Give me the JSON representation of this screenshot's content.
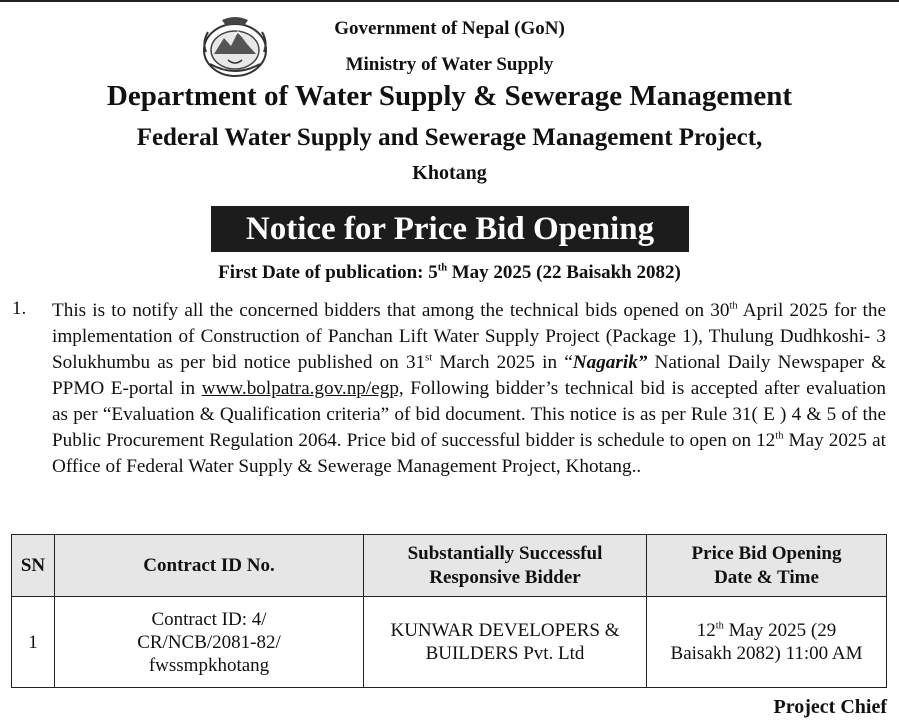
{
  "header": {
    "line1": "Government of Nepal (GoN)",
    "line2": "Ministry of Water Supply",
    "line3": "Department of Water Supply & Sewerage Management",
    "line4": "Federal Water Supply and Sewerage Management Project,",
    "line5": "Khotang",
    "emblem_icon": "nepal-emblem-icon"
  },
  "notice_title": "Notice for Price Bid Opening",
  "publication": {
    "prefix": "First Date of publication: 5",
    "sup": "th",
    "suffix": "  May 2025 (22 Baisakh 2082)"
  },
  "paragraph": {
    "number": "1.",
    "p1": "This is to notify all the concerned bidders that among the technical bids opened on 30",
    "s1": "th",
    "p2": "  April 2025 for the implementation of Construction of  Panchan Lift Water Supply Project (Package 1), Thulung Dudhkoshi- 3 Solukhumbu as  per bid notice published on 31",
    "s2": "st",
    "p3": " March 2025 in “",
    "newspaper": "Nagarik”",
    "p4": " National Daily Newspaper & PPMO E-portal in ",
    "link": "www.bolpatra.gov.np/egp,",
    "p5": " Following  bidder’s technical bid is accepted after evaluation as per “Evaluation & Qualification criteria” of bid document. This notice is as per Rule 31( E ) 4 & 5  of the Public Procurement Regulation 2064. Price bid of successful bidder is  schedule to open on  12",
    "s3": "th",
    "p6": "  May 2025 at Office of Federal Water Supply & Sewerage Management Project, Khotang.."
  },
  "table": {
    "headers": {
      "sn": "SN",
      "contract": "Contract ID No.",
      "bidder_l1": "Substantially Successful",
      "bidder_l2": "Responsive Bidder",
      "date_l1": "Price Bid Opening",
      "date_l2": "Date & Time"
    },
    "rows": [
      {
        "sn": "1",
        "contract_l1": "Contract ID: 4/",
        "contract_l2": "CR/NCB/2081-82/",
        "contract_l3": "fwssmpkhotang",
        "bidder_l1": "KUNWAR DEVELOPERS &",
        "bidder_l2": "BUILDERS Pvt. Ltd",
        "date_prefix": "12",
        "date_sup": "th",
        "date_rest": " May 2025 (29",
        "date_l2": "Baisakh 2082) 11:00 AM"
      }
    ]
  },
  "signature": "Project Chief"
}
